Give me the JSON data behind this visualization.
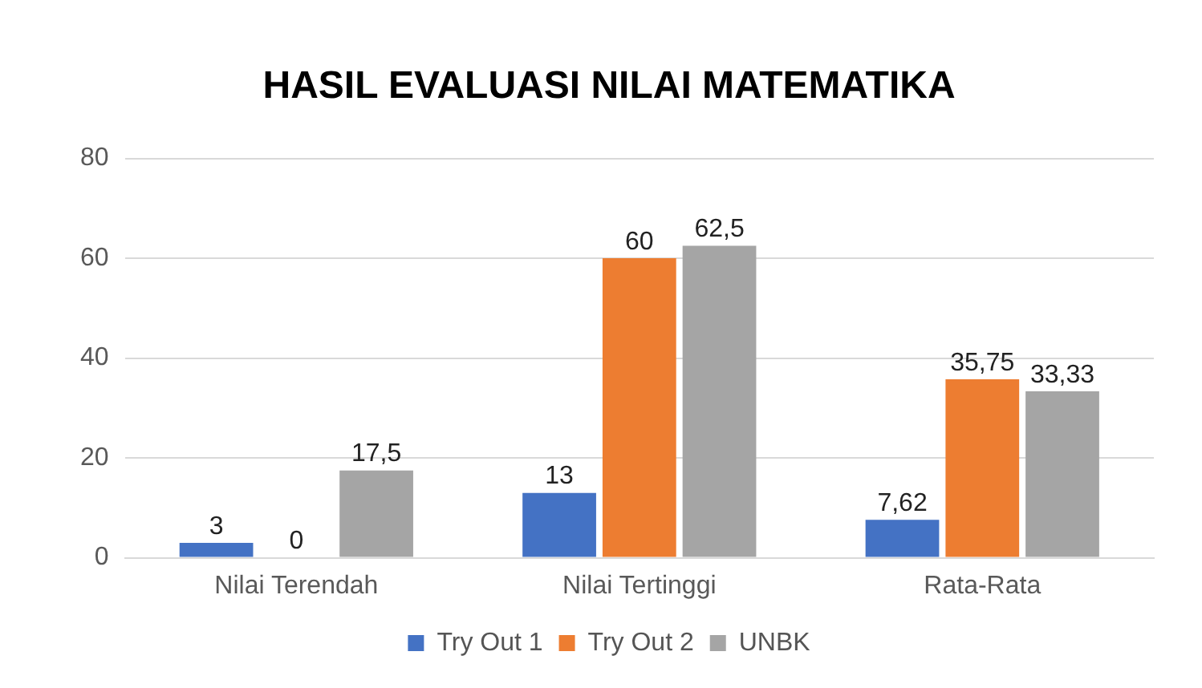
{
  "chart_data": {
    "type": "bar",
    "title": "HASIL EVALUASI NILAI MATEMATIKA",
    "categories": [
      "Nilai Terendah",
      "Nilai Tertinggi",
      "Rata-Rata"
    ],
    "series": [
      {
        "name": "Try Out 1",
        "color": "#4472c4",
        "values": [
          3,
          13,
          7.62
        ],
        "value_labels": [
          "3",
          "13",
          "7,62"
        ]
      },
      {
        "name": "Try Out 2",
        "color": "#ed7d31",
        "values": [
          0,
          60,
          35.75
        ],
        "value_labels": [
          "0",
          "60",
          "35,75"
        ]
      },
      {
        "name": "UNBK",
        "color": "#a5a5a5",
        "values": [
          17.5,
          62.5,
          33.33
        ],
        "value_labels": [
          "17,5",
          "62,5",
          "33,33"
        ]
      }
    ],
    "ylim": [
      0,
      80
    ],
    "yticks": [
      0,
      20,
      40,
      60,
      80
    ],
    "grid": "y",
    "legend": "bottom"
  }
}
